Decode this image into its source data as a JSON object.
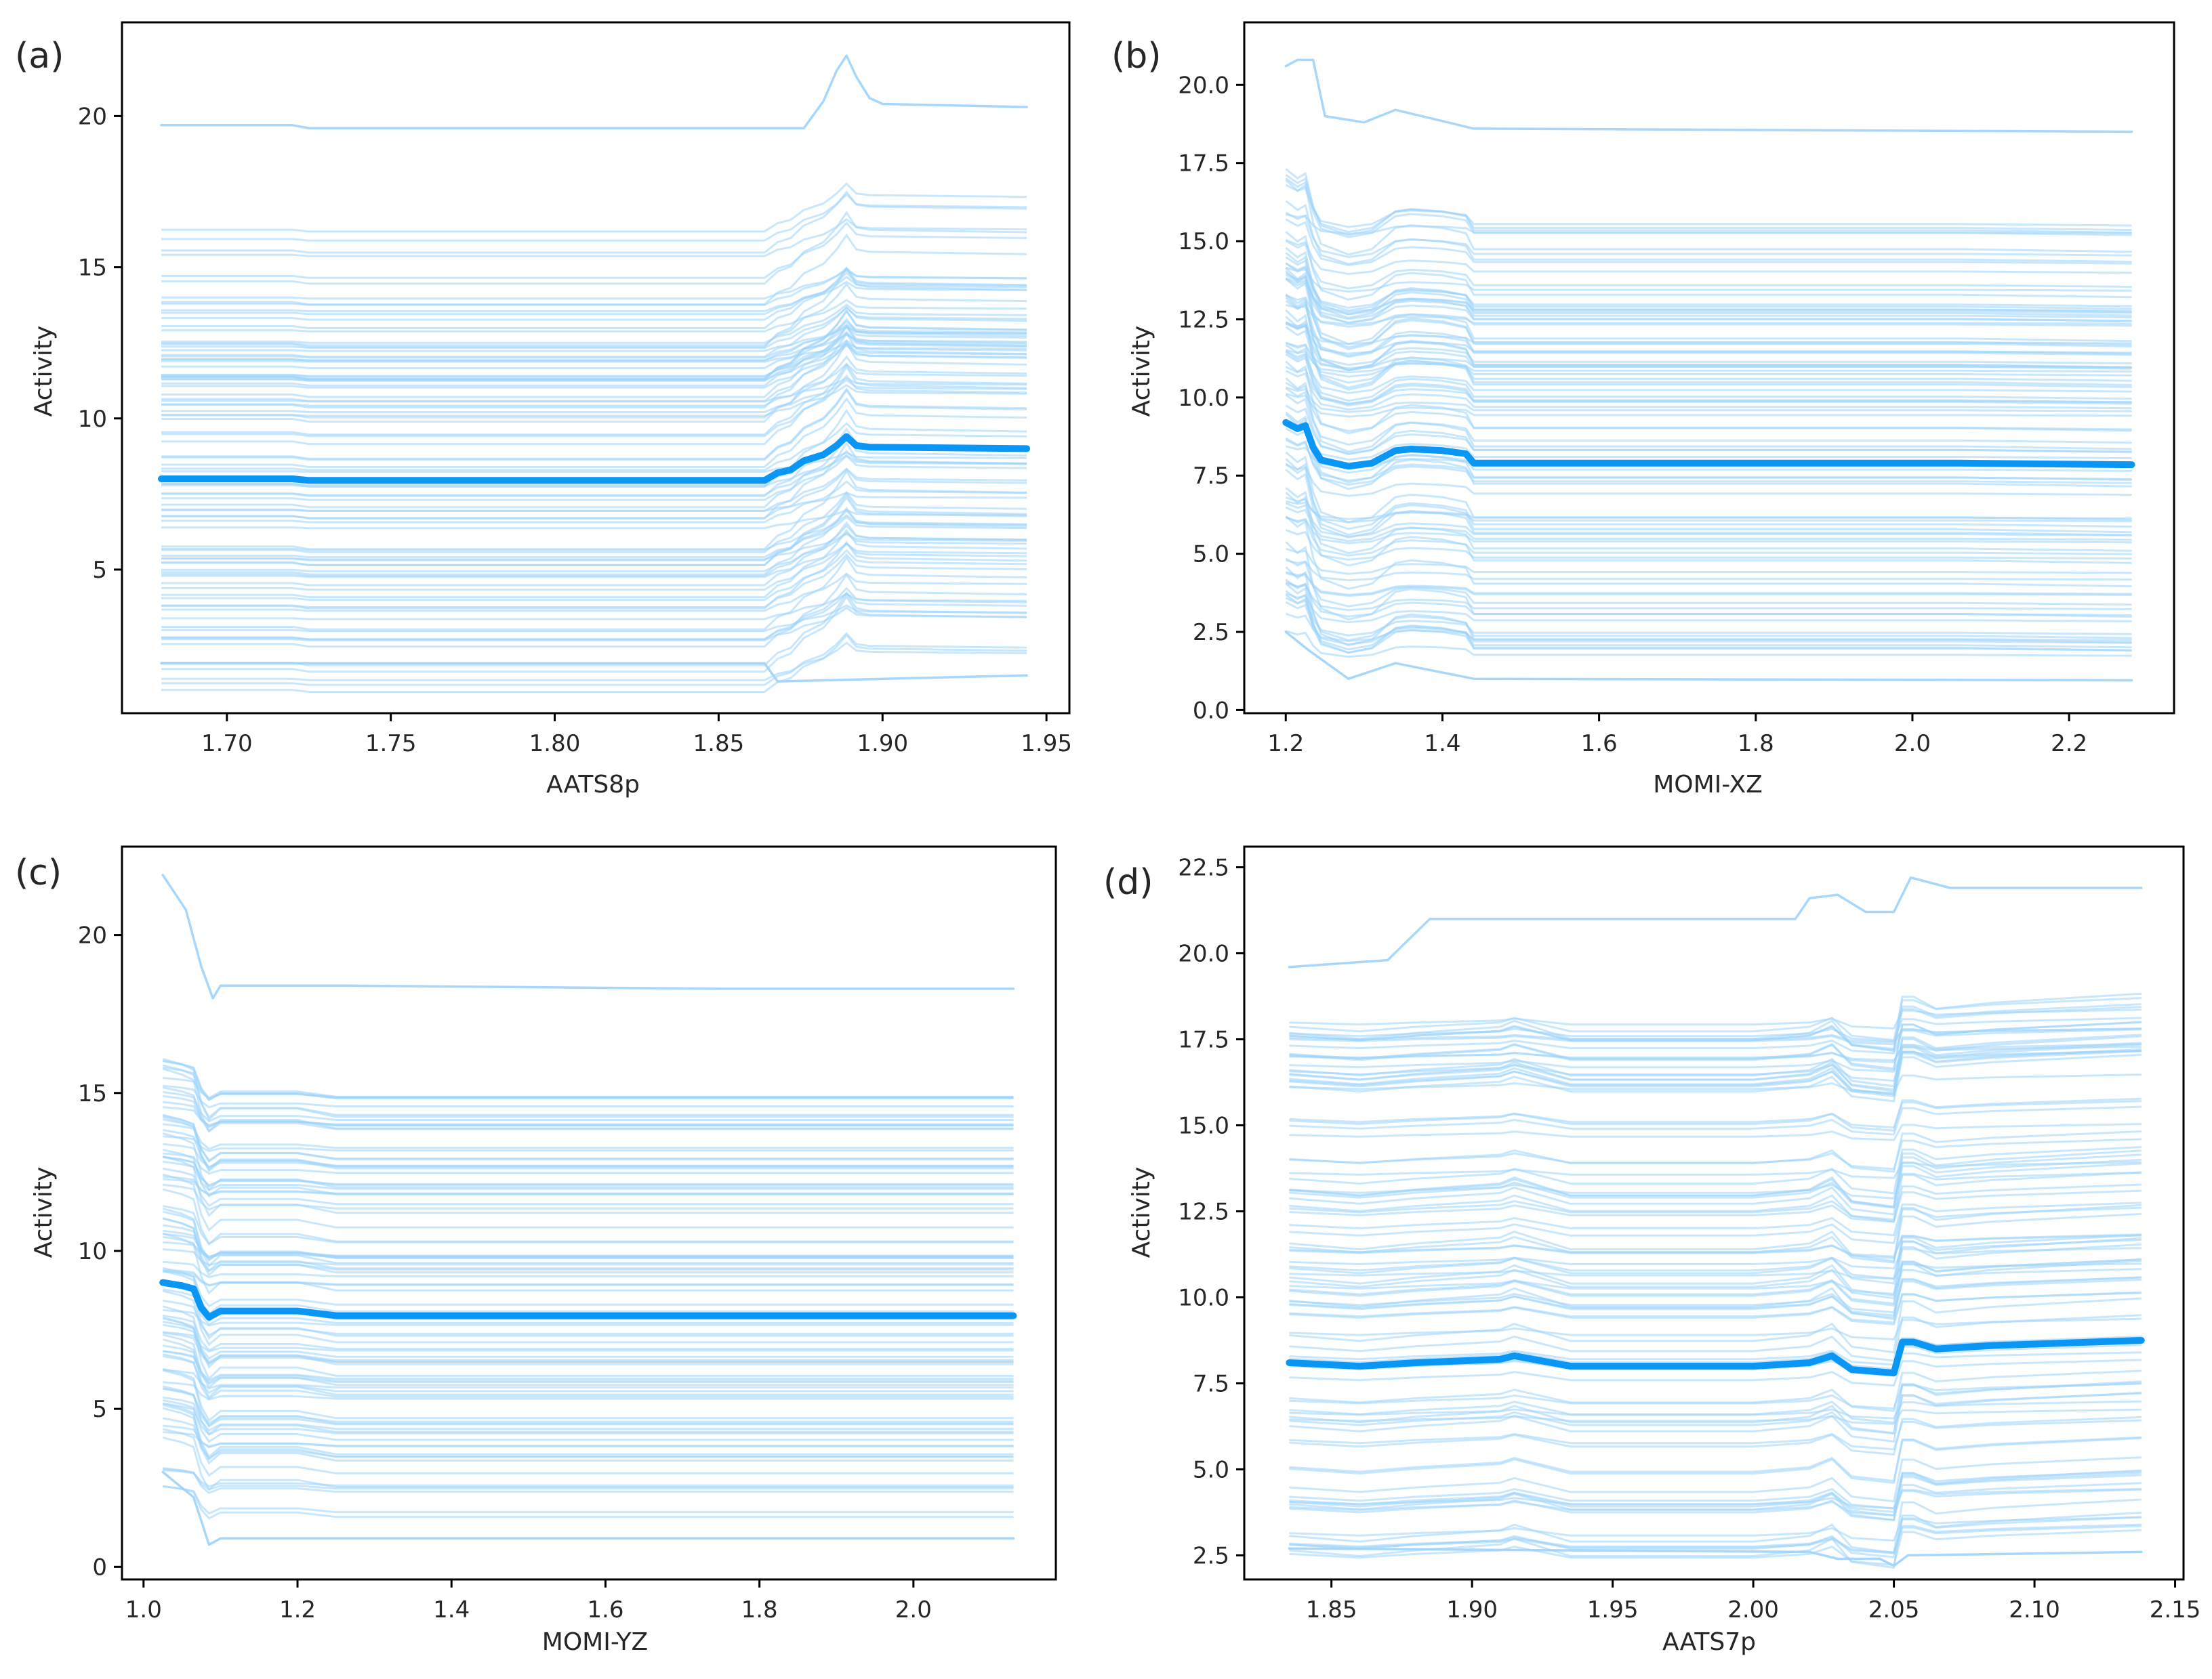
{
  "figure": {
    "description_panels": [
      "(a)",
      "(b)",
      "(c)",
      "(d)"
    ],
    "colors": {
      "ice": "#9dd3fa",
      "pdp": "#0a96f5",
      "axes": "#000000",
      "text": "#262626"
    }
  },
  "chart_data": [
    {
      "type": "line",
      "panel_label": "(a)",
      "xlabel": "AATS8p",
      "ylabel": "Activity",
      "xlim": [
        1.668,
        1.957
      ],
      "ylim": [
        0.25,
        23.1
      ],
      "xticks": [
        1.7,
        1.75,
        1.8,
        1.85,
        1.9,
        1.95
      ],
      "xtick_labels": [
        "1.70",
        "1.75",
        "1.80",
        "1.85",
        "1.90",
        "1.95"
      ],
      "yticks": [
        5,
        10,
        15,
        20
      ],
      "ytick_labels": [
        "5",
        "10",
        "15",
        "20"
      ],
      "series": [
        {
          "name": "Average (PDP)",
          "x": [
            1.68,
            1.72,
            1.725,
            1.864,
            1.868,
            1.872,
            1.876,
            1.882,
            1.886,
            1.889,
            1.892,
            1.896,
            1.944
          ],
          "y": [
            8.0,
            8.0,
            7.95,
            7.95,
            8.2,
            8.3,
            8.6,
            8.8,
            9.1,
            9.4,
            9.1,
            9.05,
            9.0
          ]
        },
        {
          "name": "ICE instance (highest)",
          "x": [
            1.68,
            1.72,
            1.725,
            1.876,
            1.882,
            1.886,
            1.889,
            1.892,
            1.896,
            1.9,
            1.944
          ],
          "y": [
            19.7,
            19.7,
            19.6,
            19.6,
            20.5,
            21.5,
            22.0,
            21.3,
            20.6,
            20.4,
            20.3
          ]
        },
        {
          "name": "ICE instance (lowest)",
          "x": [
            1.68,
            1.864,
            1.868,
            1.944
          ],
          "y": [
            1.9,
            1.9,
            1.3,
            1.5
          ]
        }
      ]
    },
    {
      "type": "line",
      "panel_label": "(b)",
      "xlabel": "MOMI-XZ",
      "ylabel": "Activity",
      "xlim": [
        1.147,
        2.334
      ],
      "ylim": [
        -0.1,
        22.0
      ],
      "xticks": [
        1.2,
        1.4,
        1.6,
        1.8,
        2.0,
        2.2
      ],
      "xtick_labels": [
        "1.2",
        "1.4",
        "1.6",
        "1.8",
        "2.0",
        "2.2"
      ],
      "yticks": [
        0.0,
        2.5,
        5.0,
        7.5,
        10.0,
        12.5,
        15.0,
        17.5,
        20.0
      ],
      "ytick_labels": [
        "0.0",
        "2.5",
        "5.0",
        "7.5",
        "10.0",
        "12.5",
        "15.0",
        "17.5",
        "20.0"
      ],
      "series": [
        {
          "name": "Average (PDP)",
          "x": [
            1.2,
            1.215,
            1.225,
            1.235,
            1.245,
            1.28,
            1.31,
            1.34,
            1.36,
            1.4,
            1.43,
            1.44,
            2.06,
            2.28
          ],
          "y": [
            9.2,
            9.0,
            9.1,
            8.4,
            8.0,
            7.8,
            7.9,
            8.3,
            8.35,
            8.3,
            8.2,
            7.9,
            7.9,
            7.85
          ]
        },
        {
          "name": "ICE instance (highest)",
          "x": [
            1.2,
            1.215,
            1.235,
            1.25,
            1.3,
            1.34,
            1.44,
            2.28
          ],
          "y": [
            20.6,
            20.8,
            20.8,
            19.0,
            18.8,
            19.2,
            18.6,
            18.5
          ]
        },
        {
          "name": "ICE instance (lowest)",
          "x": [
            1.2,
            1.23,
            1.28,
            1.34,
            1.44,
            2.28
          ],
          "y": [
            2.5,
            1.9,
            1.0,
            1.5,
            1.0,
            0.95
          ]
        }
      ]
    },
    {
      "type": "line",
      "panel_label": "(c)",
      "xlabel": "MOMI-YZ",
      "ylabel": "Activity",
      "xlim": [
        0.972,
        2.185
      ],
      "ylim": [
        -0.4,
        22.8
      ],
      "xticks": [
        1.0,
        1.2,
        1.4,
        1.6,
        1.8,
        2.0
      ],
      "xtick_labels": [
        "1.0",
        "1.2",
        "1.4",
        "1.6",
        "1.8",
        "2.0"
      ],
      "yticks": [
        0,
        5,
        10,
        15,
        20
      ],
      "ytick_labels": [
        "0",
        "5",
        "10",
        "15",
        "20"
      ],
      "series": [
        {
          "name": "Average (PDP)",
          "x": [
            1.025,
            1.05,
            1.065,
            1.075,
            1.085,
            1.1,
            1.2,
            1.25,
            2.13
          ],
          "y": [
            9.0,
            8.9,
            8.8,
            8.2,
            7.9,
            8.1,
            8.1,
            7.95,
            7.95
          ]
        },
        {
          "name": "ICE instance (highest)",
          "x": [
            1.025,
            1.055,
            1.075,
            1.09,
            1.1,
            1.25,
            1.75,
            2.13
          ],
          "y": [
            21.9,
            20.8,
            19.0,
            18.0,
            18.4,
            18.4,
            18.3,
            18.3
          ]
        },
        {
          "name": "ICE instance (lowest)",
          "x": [
            1.025,
            1.065,
            1.085,
            1.1,
            2.13
          ],
          "y": [
            3.0,
            2.2,
            0.7,
            0.9,
            0.9
          ]
        }
      ]
    },
    {
      "type": "line",
      "panel_label": "(d)",
      "xlabel": "AATS7p",
      "ylabel": "Activity",
      "xlim": [
        1.819,
        2.153
      ],
      "ylim": [
        1.8,
        23.1
      ],
      "xticks": [
        1.85,
        1.9,
        1.95,
        2.0,
        2.05,
        2.1,
        2.15
      ],
      "xtick_labels": [
        "1.85",
        "1.90",
        "1.95",
        "2.00",
        "2.05",
        "2.10",
        "2.15"
      ],
      "yticks": [
        2.5,
        5.0,
        7.5,
        10.0,
        12.5,
        15.0,
        17.5,
        20.0,
        22.5
      ],
      "ytick_labels": [
        "2.5",
        "5.0",
        "7.5",
        "10.0",
        "12.5",
        "15.0",
        "17.5",
        "20.0",
        "22.5"
      ],
      "series": [
        {
          "name": "Average (PDP)",
          "x": [
            1.835,
            1.86,
            1.88,
            1.91,
            1.915,
            1.935,
            2.0,
            2.02,
            2.028,
            2.035,
            2.05,
            2.053,
            2.057,
            2.065,
            2.085,
            2.138
          ],
          "y": [
            8.1,
            8.0,
            8.1,
            8.2,
            8.3,
            8.0,
            8.0,
            8.1,
            8.3,
            7.9,
            7.8,
            8.7,
            8.7,
            8.5,
            8.6,
            8.75
          ]
        },
        {
          "name": "ICE instance (highest)",
          "x": [
            1.835,
            1.87,
            1.885,
            2.015,
            2.02,
            2.03,
            2.04,
            2.05,
            2.056,
            2.07,
            2.138
          ],
          "y": [
            19.6,
            19.8,
            21.0,
            21.0,
            21.6,
            21.7,
            21.2,
            21.2,
            22.2,
            21.9,
            21.9
          ]
        },
        {
          "name": "ICE instance (lowest)",
          "x": [
            1.835,
            2.02,
            2.03,
            2.045,
            2.05,
            2.055,
            2.138
          ],
          "y": [
            2.7,
            2.6,
            2.4,
            2.4,
            2.2,
            2.5,
            2.6
          ]
        }
      ]
    }
  ]
}
